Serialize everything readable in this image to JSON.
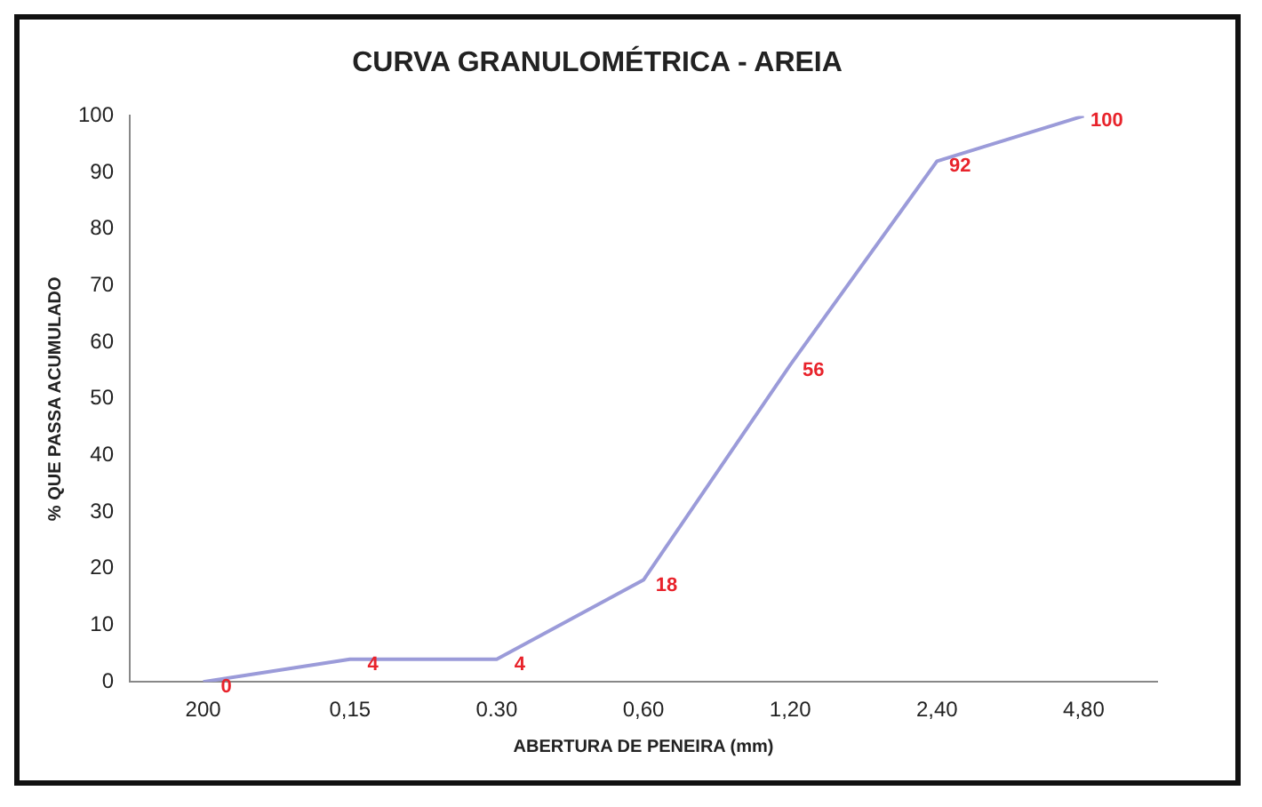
{
  "chart_data": {
    "type": "line",
    "title": "CURVA GRANULOMÉTRICA - AREIA",
    "xlabel": "ABERTURA DE PENEIRA (mm)",
    "ylabel": "% QUE PASSA ACUMULADO",
    "categories": [
      "200",
      "0,15",
      "0.30",
      "0,60",
      "1,20",
      "2,40",
      "4,80"
    ],
    "series": [
      {
        "color": "#9b9bd9",
        "values": [
          0,
          4,
          4,
          18,
          56,
          92,
          100
        ]
      }
    ],
    "ylim": [
      0,
      100
    ],
    "yticks": [
      0,
      10,
      20,
      30,
      40,
      50,
      60,
      70,
      80,
      90,
      100
    ],
    "grid": false,
    "legend": false,
    "marker": "none",
    "line_style": "solid",
    "data_labels": true
  }
}
